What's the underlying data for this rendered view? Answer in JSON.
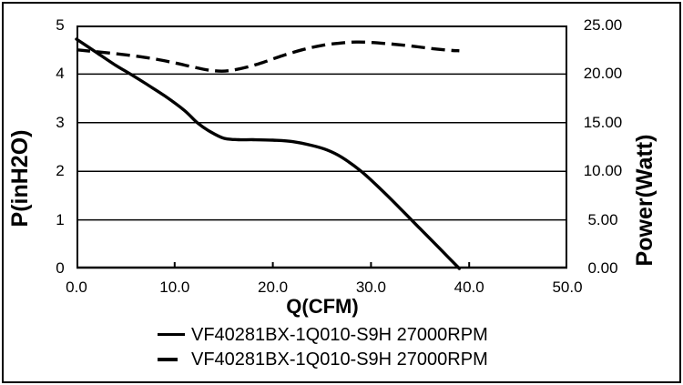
{
  "colors": {
    "line": "#000000",
    "background": "#ffffff",
    "border": "#000000"
  },
  "chart_data": {
    "type": "line",
    "title": "",
    "xlabel": "Q(CFM)",
    "ylabel_left": "P(inH2O)",
    "ylabel_right": "Power(Watt)",
    "grid": true,
    "legend_position": "bottom",
    "x_axis": {
      "min": 0,
      "max": 50,
      "tick_labels": [
        "0.0",
        "10.0",
        "20.0",
        "30.0",
        "40.0",
        "50.0"
      ]
    },
    "y_left_axis": {
      "min": 0,
      "max": 5,
      "tick_labels": [
        "0",
        "1",
        "2",
        "3",
        "4",
        "5"
      ]
    },
    "y_right_axis": {
      "min": 0,
      "max": 25,
      "tick_labels": [
        "0.00",
        "5.00",
        "10.00",
        "15.00",
        "20.00",
        "25.00"
      ]
    },
    "series": [
      {
        "name": "VF40281BX-1Q010-S9H 27000RPM",
        "style": "solid",
        "axis": "left",
        "unit": "inH2O",
        "points": [
          [
            0,
            4.72
          ],
          [
            2,
            4.45
          ],
          [
            4,
            4.18
          ],
          [
            5.5,
            4.0
          ],
          [
            7,
            3.81
          ],
          [
            9,
            3.55
          ],
          [
            11,
            3.25
          ],
          [
            12.3,
            3.0
          ],
          [
            13.5,
            2.83
          ],
          [
            15,
            2.68
          ],
          [
            16.5,
            2.65
          ],
          [
            18,
            2.65
          ],
          [
            20,
            2.64
          ],
          [
            22,
            2.61
          ],
          [
            24,
            2.53
          ],
          [
            25.5,
            2.44
          ],
          [
            27,
            2.29
          ],
          [
            29,
            2.0
          ],
          [
            31,
            1.63
          ],
          [
            33,
            1.23
          ],
          [
            35,
            0.82
          ],
          [
            37,
            0.41
          ],
          [
            39,
            0.0
          ]
        ]
      },
      {
        "name": "VF40281BX-1Q010-S9H 27000RPM",
        "style": "dashed",
        "axis": "right",
        "unit": "Watt",
        "points": [
          [
            0,
            22.5
          ],
          [
            2,
            22.3
          ],
          [
            4,
            22.1
          ],
          [
            6,
            21.85
          ],
          [
            8,
            21.55
          ],
          [
            10,
            21.15
          ],
          [
            12,
            20.7
          ],
          [
            13.5,
            20.4
          ],
          [
            14.8,
            20.3
          ],
          [
            16,
            20.42
          ],
          [
            17.5,
            20.75
          ],
          [
            19,
            21.2
          ],
          [
            21,
            21.9
          ],
          [
            23,
            22.5
          ],
          [
            25,
            22.95
          ],
          [
            27,
            23.2
          ],
          [
            28.5,
            23.3
          ],
          [
            30,
            23.25
          ],
          [
            32,
            23.1
          ],
          [
            34,
            22.9
          ],
          [
            36,
            22.65
          ],
          [
            38,
            22.45
          ],
          [
            39,
            22.4
          ]
        ]
      }
    ]
  },
  "legend": {
    "items": [
      {
        "label": "VF40281BX-1Q010-S9H 27000RPM",
        "marker": "solid-line"
      },
      {
        "label": "VF40281BX-1Q010-S9H 27000RPM",
        "marker": "dashed-line"
      }
    ]
  }
}
